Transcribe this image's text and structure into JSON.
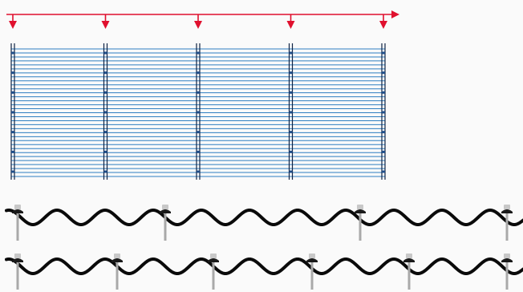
{
  "colors": {
    "background": "#fafafa",
    "arrow": "#e0102e",
    "panel_line": "#2f7fc1",
    "panel_edge": "#0f2344",
    "fastener_dot": "#1f4e8a",
    "sheet_profile": "#0a0a0a",
    "screw_shaft": "#a9a9a9",
    "screw_washer": "#1a1a1a",
    "screw_cap": "#c8c8c8"
  },
  "icons": {
    "arrow": "load-direction-arrow-icon",
    "fastener": "self-tapping-screw-icon"
  },
  "diagram": {
    "arrow_count": 5,
    "support_count": 5,
    "panel_line_count": 33,
    "fastener_rows_per_support": 7,
    "profile_rows": [
      {
        "screws": 4
      },
      {
        "screws": 6
      }
    ]
  }
}
